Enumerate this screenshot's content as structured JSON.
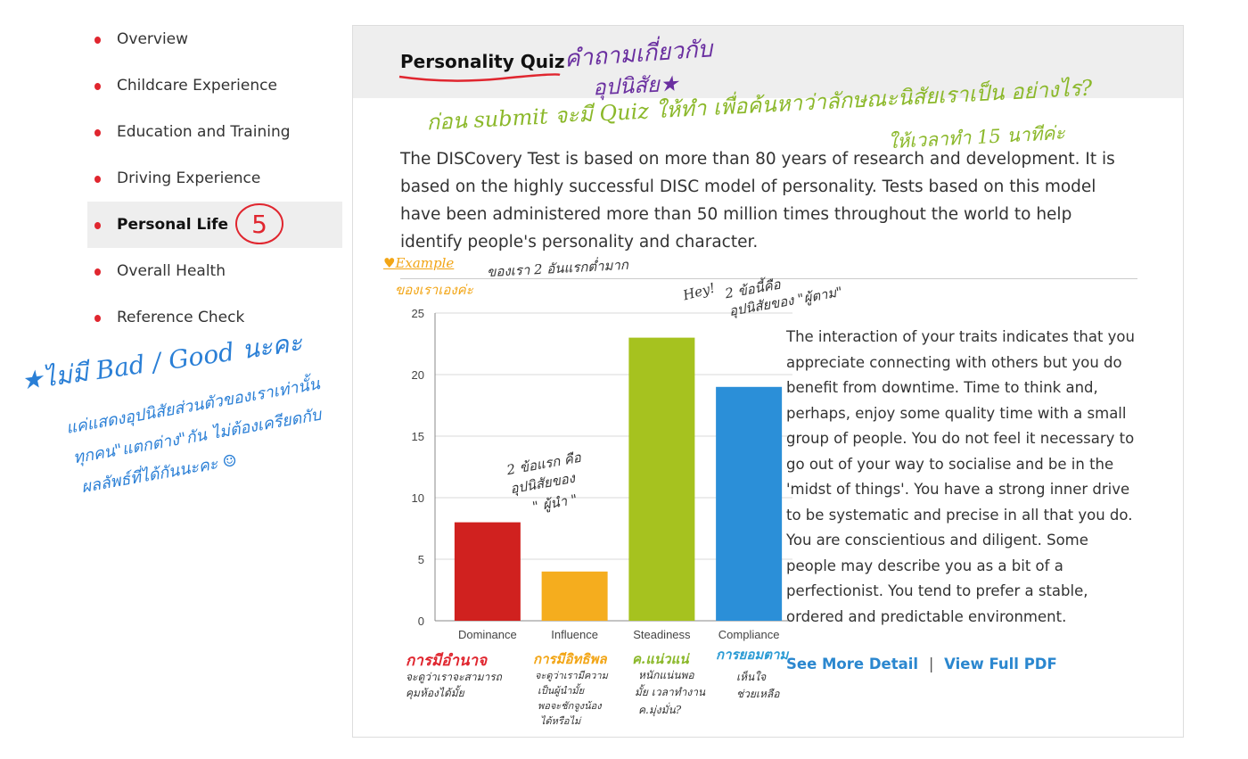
{
  "sidebar": {
    "items": [
      {
        "label": "Overview",
        "active": false
      },
      {
        "label": "Childcare Experience",
        "active": false
      },
      {
        "label": "Education and Training",
        "active": false
      },
      {
        "label": "Driving Experience",
        "active": false
      },
      {
        "label": "Personal Life",
        "active": true
      },
      {
        "label": "Overall Health",
        "active": false
      },
      {
        "label": "Reference Check",
        "active": false
      }
    ],
    "step_badge": "5"
  },
  "card": {
    "title": "Personality Quiz",
    "intro": "The DISCovery Test is based on more than 80 years of research and development. It is based on the highly successful DISC model of personality. Tests based on this model have been administered more than 50 million times throughout the world to help identify people's personality and character.",
    "description": "The interaction of your traits indicates that you appreciate connecting with others but you do benefit from downtime. Time to think and, perhaps, enjoy some quality time with a small group of people. You do not feel it necessary to go out of your way to socialise and be in the 'midst of things'. You have a strong inner drive to be systematic and precise in all that you do. You are conscientious and diligent. Some people may describe you as a bit of a perfectionist. You tend to prefer a stable, ordered and predictable environment.",
    "links": {
      "detail": "See More Detail",
      "separator": "|",
      "pdf": "View Full PDF"
    }
  },
  "chart_data": {
    "type": "bar",
    "categories": [
      "Dominance",
      "Influence",
      "Steadiness",
      "Compliance"
    ],
    "values": [
      8,
      4,
      23,
      19
    ],
    "colors": [
      "#d0211f",
      "#f5ad1e",
      "#a6c21f",
      "#2b8fd8"
    ],
    "ylim": [
      0,
      25
    ],
    "yticks": [
      0,
      5,
      10,
      15,
      20,
      25
    ],
    "grid": true
  },
  "annotations": {
    "title_note_1": "คำถามเกี่ยวกับ",
    "title_note_2": "อุปนิสัย★",
    "quiz_note_1": "ก่อน submit จะมี Quiz ให้ทำ เพื่อค้นหาว่าลักษณะนิสัยเราเป็น อย่างไร?",
    "quiz_note_2": "ให้เวลาทำ 15 นาทีค่ะ",
    "example_label": "♥Example",
    "example_note_1": "ของเราเองค่ะ",
    "example_note_2": "ของเรา 2 อันแรกต่ำมาก",
    "hey": "Hey!",
    "follower_1": "2 ข้อนี้คือ",
    "follower_2": "อุปนิสัยของ \"ผู้ตาม\"",
    "leader_1": "2 ข้อแรก คือ",
    "leader_2": "อุปนิสัยของ",
    "leader_3": "\" ผู้นำ \"",
    "nobad_1": "★ไม่มี Bad / Good นะคะ",
    "nobad_2": "แค่แสดงอุปนิสัยส่วนตัวของเราเท่านั้น",
    "nobad_3": "ทุกคน\"แตกต่าง\"กัน ไม่ต้องเครียดกับ",
    "nobad_4": "ผลลัพธ์ที่ได้กันนะคะ ☺",
    "d_head": "การมีอำนาจ",
    "d_1": "จะดูว่าเราจะสามารถ",
    "d_2": "คุมห้องได้มั้ย",
    "i_head": "การมีอิทธิพล",
    "i_1": "จะดูว่าเรามีความ",
    "i_2": "เป็นผู้นำมั้ย",
    "i_3": "พอจะชักจูงน้อง",
    "i_4": "ได้หรือไม่",
    "s_head": "ค.แน่วแน่",
    "s_1": "หนักแน่นพอ",
    "s_2": "มั้ย เวลาทำงาน",
    "s_3": "ค.มุ่งมั่น?",
    "c_head": "การยอมตาม",
    "c_1": "เห็นใจ",
    "c_2": "ช่วยเหลือ"
  }
}
